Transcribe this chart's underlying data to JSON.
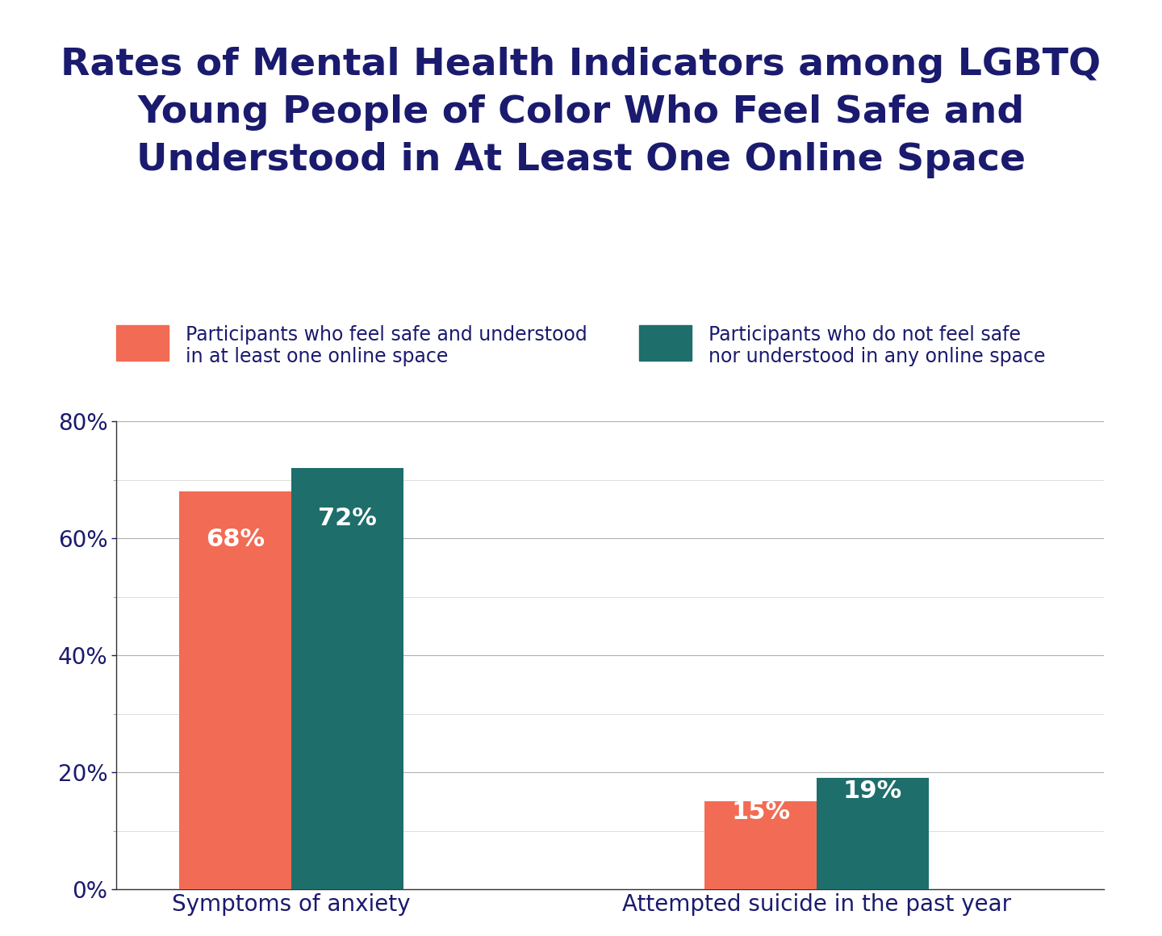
{
  "title": "Rates of Mental Health Indicators among LGBTQ\nYoung People of Color Who Feel Safe and\nUnderstood in At Least One Online Space",
  "title_color": "#1a1a6e",
  "title_fontsize": 34,
  "title_fontweight": "bold",
  "background_color": "#ffffff",
  "categories": [
    "Symptoms of anxiety",
    "Attempted suicide in the past year"
  ],
  "series": [
    {
      "label": "Participants who feel safe and understood\nin at least one online space",
      "color": "#f26b54",
      "values": [
        68,
        15
      ]
    },
    {
      "label": "Participants who do not feel safe\nnor understood in any online space",
      "color": "#1e6e6b",
      "values": [
        72,
        19
      ]
    }
  ],
  "ylim": [
    0,
    80
  ],
  "yticks_major": [
    0,
    20,
    40,
    60,
    80
  ],
  "yticks_minor": [
    10,
    30,
    50,
    70
  ],
  "bar_width": 0.32,
  "group_centers": [
    0.5,
    2.0
  ],
  "label_color": "#ffffff",
  "label_fontsize": 22,
  "axis_label_color": "#1a1a6e",
  "tick_label_color": "#1a1a6e",
  "tick_label_fontsize": 20,
  "xtick_fontsize": 20,
  "major_grid_color": "#b0b0b0",
  "minor_grid_color": "#d8d8d8",
  "grid_linewidth": 0.8,
  "legend_fontsize": 17,
  "legend_text_color": "#1a1a6e",
  "legend_handle_size": 1.8
}
